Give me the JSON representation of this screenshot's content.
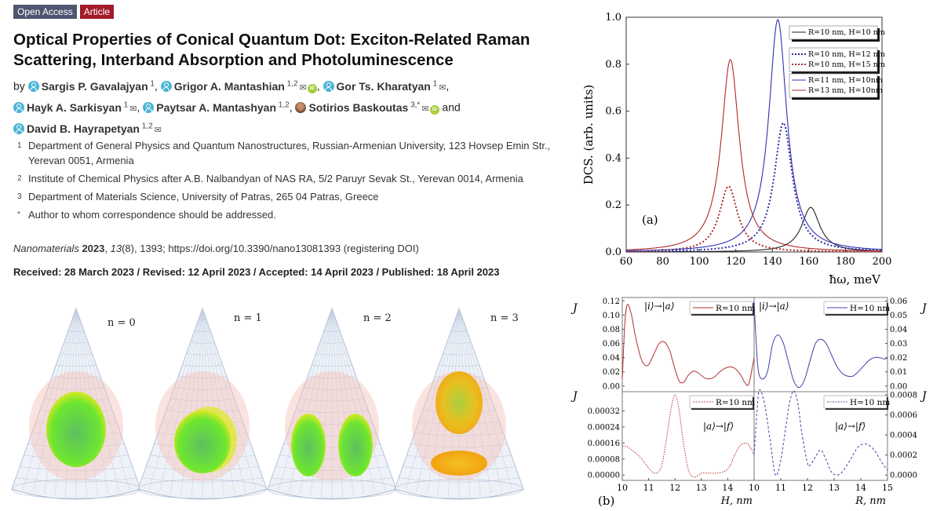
{
  "badges": [
    {
      "label": "Open Access",
      "color": "#4f5671"
    },
    {
      "label": "Article",
      "color": "#a31a2a"
    }
  ],
  "title": "Optical Properties of Conical Quantum Dot: Exciton-Related Raman Scattering, Interband Absorption and Photoluminescence",
  "authors_prefix": "by",
  "authors": [
    {
      "name": "Sargis P. Gavalajyan",
      "sup": "1",
      "mail": false,
      "orcid": false,
      "icon": "person-icon"
    },
    {
      "name": "Grigor A. Mantashian",
      "sup": "1,2",
      "mail": true,
      "orcid": true,
      "icon": "person-icon"
    },
    {
      "name": "Gor Ts. Kharatyan",
      "sup": "1",
      "mail": true,
      "orcid": false,
      "icon": "person-icon"
    },
    {
      "name": "Hayk A. Sarkisyan",
      "sup": "1",
      "mail": true,
      "orcid": false,
      "icon": "person-icon"
    },
    {
      "name": "Paytsar A. Mantashyan",
      "sup": "1,2",
      "mail": false,
      "orcid": false,
      "icon": "person-icon"
    },
    {
      "name": "Sotirios Baskoutas",
      "sup": "3,*",
      "mail": true,
      "orcid": true,
      "icon": "photo-icon"
    },
    {
      "name": "David B. Hayrapetyan",
      "sup": "1,2",
      "mail": true,
      "orcid": false,
      "icon": "person-icon"
    }
  ],
  "authors_and": "and",
  "affiliations": [
    {
      "num": "1",
      "text": "Department of General Physics and Quantum Nanostructures, Russian-Armenian University, 123 Hovsep Emin Str., Yerevan 0051, Armenia"
    },
    {
      "num": "2",
      "text": "Institute of Chemical Physics after A.B. Nalbandyan of NAS RA, 5/2 Paruyr Sevak St., Yerevan 0014, Armenia"
    },
    {
      "num": "3",
      "text": "Department of Materials Science, University of Patras, 265 04 Patras, Greece"
    },
    {
      "num": "*",
      "text": "Author to whom correspondence should be addressed."
    }
  ],
  "citation": {
    "journal": "Nanomaterials",
    "year": "2023",
    "volume": "13",
    "issue": "(8)",
    "rest": ", 1393; https://doi.org/10.3390/nano13081393 (registering DOI)"
  },
  "dates": "Received: 28 March 2023 / Revised: 12 April 2023 / Accepted: 14 April 2023 / Published: 18 April 2023",
  "cones": [
    {
      "label": "n = 0"
    },
    {
      "label": "n = 1"
    },
    {
      "label": "n = 2"
    },
    {
      "label": "n = 3"
    }
  ],
  "chart_data": [
    {
      "type": "line",
      "title": "",
      "panel_label": "(a)",
      "xlabel": "ħω, meV",
      "ylabel": "DCS. (arb. units)",
      "xlim": [
        60,
        200
      ],
      "ylim": [
        0,
        1.0
      ],
      "xticks": [
        60,
        80,
        100,
        120,
        140,
        160,
        180,
        200
      ],
      "yticks": [
        0.0,
        0.2,
        0.4,
        0.6,
        0.8,
        1.0
      ],
      "legend_position": "top-right",
      "series": [
        {
          "name": "R=10 nm, H=10 nm",
          "color": "#222222",
          "dash": "solid",
          "peak_x": 161,
          "peak_y": 0.19,
          "gamma": 6
        },
        {
          "name": "R=10 nm, H=12 nm",
          "color": "#2a2aa8",
          "dash": "dotted",
          "peak_x": 146,
          "peak_y": 0.55,
          "gamma": 6
        },
        {
          "name": "R=10 nm, H=15 nm",
          "color": "#b02828",
          "dash": "dotted",
          "peak_x": 116,
          "peak_y": 0.28,
          "gamma": 6
        },
        {
          "name": "R=11 nm, H=10nm",
          "color": "#3030b0",
          "dash": "solid",
          "peak_x": 143,
          "peak_y": 0.99,
          "gamma": 6
        },
        {
          "name": "R=13 nm, H=10nm",
          "color": "#b02828",
          "dash": "solid",
          "peak_x": 117,
          "peak_y": 0.82,
          "gamma": 6
        }
      ]
    },
    {
      "type": "line",
      "panel_label": "(b)",
      "subplots": [
        {
          "id": "je-h",
          "ylabel": "J_e",
          "transition": "|i⟩→|a⟩",
          "legend": "R=10 nm",
          "color": "#b03030",
          "dash": "solid",
          "xlim": [
            10,
            15
          ],
          "ylim": [
            0,
            0.12
          ],
          "yticks": [
            "0.00",
            "0.02",
            "0.04",
            "0.06",
            "0.08",
            "0.10",
            "0.12"
          ],
          "x": [
            10,
            10.1,
            10.2,
            10.35,
            10.5,
            10.7,
            10.85,
            11.0,
            11.2,
            11.4,
            11.6,
            11.8,
            11.95,
            12.1,
            12.2,
            12.35,
            12.5,
            12.7,
            12.9,
            13.1,
            13.3,
            13.5,
            13.7,
            13.9,
            14.1,
            14.3,
            14.5,
            14.65,
            14.8,
            15
          ],
          "y": [
            0.01,
            0.09,
            0.115,
            0.1,
            0.07,
            0.04,
            0.03,
            0.03,
            0.045,
            0.06,
            0.062,
            0.05,
            0.03,
            0.012,
            0.005,
            0.006,
            0.015,
            0.021,
            0.018,
            0.012,
            0.01,
            0.013,
            0.02,
            0.025,
            0.027,
            0.024,
            0.015,
            0.005,
            0.003,
            0.04
          ]
        },
        {
          "id": "je-r",
          "ylabel": "J_e",
          "transition": "|i⟩→|a⟩",
          "legend": "H=10 nm",
          "color": "#4040b0",
          "dash": "solid",
          "xlim": [
            10,
            15
          ],
          "ylim": [
            0,
            0.06
          ],
          "yticks": [
            "0.00",
            "0.01",
            "0.02",
            "0.03",
            "0.04",
            "0.05",
            "0.06"
          ],
          "x": [
            10,
            10.05,
            10.15,
            10.3,
            10.5,
            10.7,
            10.9,
            11.1,
            11.3,
            11.5,
            11.7,
            11.9,
            12.1,
            12.3,
            12.5,
            12.7,
            12.9,
            13.1,
            13.3,
            13.5,
            13.7,
            13.9,
            14.1,
            14.3,
            14.5,
            14.7,
            14.9,
            15
          ],
          "y": [
            0.06,
            0.04,
            0.012,
            0.005,
            0.01,
            0.03,
            0.036,
            0.03,
            0.016,
            0.003,
            -0.001,
            0.005,
            0.018,
            0.03,
            0.033,
            0.03,
            0.022,
            0.014,
            0.009,
            0.007,
            0.007,
            0.01,
            0.014,
            0.018,
            0.02,
            0.02,
            0.019,
            0.02
          ]
        },
        {
          "id": "jh-h",
          "ylabel": "J_h",
          "transition": "|a⟩→|f⟩",
          "legend": "R=10 nm",
          "color": "#c04040",
          "dash": "dashed",
          "xlabel": "H, nm",
          "xlim": [
            10,
            15
          ],
          "ylim": [
            0,
            0.0004
          ],
          "xticks": [
            10,
            11,
            12,
            13,
            14
          ],
          "yticks": [
            "0.00000",
            "0.00008",
            "0.00016",
            "0.00024",
            "0.00032"
          ],
          "x": [
            10,
            10.2,
            10.5,
            10.8,
            11.1,
            11.3,
            11.5,
            11.7,
            11.85,
            12.0,
            12.15,
            12.3,
            12.5,
            12.7,
            12.9,
            13.0,
            13.3,
            13.6,
            13.9,
            14.1,
            14.3,
            14.5,
            14.7,
            14.85,
            15
          ],
          "y": [
            0.000145,
            0.00014,
            0.00011,
            7e-05,
            2e-05,
            1e-05,
            5e-05,
            0.0002,
            0.00033,
            0.0004,
            0.00033,
            0.00018,
            3e-05,
            -1e-05,
            0.0,
            1e-05,
            1e-05,
            1e-05,
            2e-05,
            5e-05,
            0.00011,
            0.00015,
            0.00016,
            0.00014,
            0.0001
          ]
        },
        {
          "id": "jh-r",
          "ylabel": "J_h",
          "transition": "|a⟩→|f⟩",
          "legend": "H=10 nm",
          "color": "#5050b0",
          "dash": "dashed",
          "xlabel": "R, nm",
          "xlim": [
            10,
            15
          ],
          "ylim": [
            0,
            0.0008
          ],
          "xticks": [
            10,
            11,
            12,
            13,
            14,
            15
          ],
          "yticks": [
            "0.0000",
            "0.0002",
            "0.0004",
            "0.0006",
            "0.0008"
          ],
          "x": [
            10,
            10.1,
            10.2,
            10.4,
            10.6,
            10.8,
            11.0,
            11.2,
            11.35,
            11.5,
            11.65,
            11.8,
            12.0,
            12.1,
            12.3,
            12.5,
            12.7,
            12.9,
            13.1,
            13.3,
            13.6,
            13.9,
            14.2,
            14.5,
            14.8,
            15
          ],
          "y": [
            0.0002,
            0.0006,
            0.00085,
            0.0007,
            0.00035,
            0.0,
            0.00015,
            0.0005,
            0.00075,
            0.00084,
            0.0007,
            0.0004,
            0.00012,
            0.0001,
            0.00018,
            0.00025,
            0.00015,
            3e-05,
            0.0,
            3e-05,
            0.00015,
            0.00028,
            0.00031,
            0.00025,
            0.00012,
            5e-05
          ]
        }
      ]
    }
  ]
}
